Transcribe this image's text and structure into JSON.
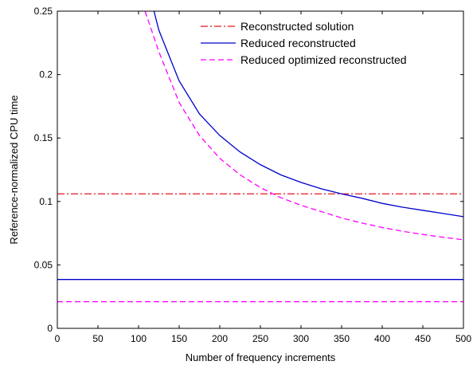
{
  "chart_data": {
    "type": "line",
    "title": "",
    "xlabel": "Number of frequency increments",
    "ylabel": "Reference-normalized CPU time",
    "xlim": [
      0,
      500
    ],
    "ylim": [
      0,
      0.25
    ],
    "xticks": [
      0,
      50,
      100,
      150,
      200,
      250,
      300,
      350,
      400,
      450,
      500
    ],
    "xtick_labels": [
      "0",
      "50",
      "100",
      "150",
      "200",
      "250",
      "300",
      "350",
      "400",
      "450",
      "500"
    ],
    "yticks": [
      0,
      0.05,
      0.1,
      0.15,
      0.2,
      0.25
    ],
    "ytick_labels": [
      "0",
      "0.05",
      "0.1",
      "0.15",
      "0.2",
      "0.25"
    ],
    "grid": false,
    "legend_position": "top-right",
    "series": [
      {
        "name": "Reconstructed solution",
        "color": "#e8141e",
        "line_style": "dash-dot",
        "x": [
          0,
          500
        ],
        "y": [
          0.106,
          0.106
        ]
      },
      {
        "name": "Reduced reconstructed",
        "color": "#0000cc",
        "line_style": "solid",
        "x": [
          0,
          500
        ],
        "y": [
          0.0385,
          0.0385
        ]
      },
      {
        "name": "Reduced reconstructed",
        "show_in_legend": false,
        "color": "#0000cc",
        "line_style": "solid",
        "x": [
          119,
          125,
          150,
          175,
          200,
          225,
          250,
          275,
          300,
          325,
          350,
          375,
          400,
          425,
          450,
          475,
          500
        ],
        "y": [
          0.25,
          0.235,
          0.195,
          0.169,
          0.152,
          0.139,
          0.129,
          0.121,
          0.115,
          0.11,
          0.106,
          0.1025,
          0.0985,
          0.0955,
          0.093,
          0.0905,
          0.088
        ]
      },
      {
        "name": "Reduced optimized reconstructed",
        "color": "#ff00ff",
        "line_style": "dashed",
        "x": [
          0,
          500
        ],
        "y": [
          0.021,
          0.021
        ]
      },
      {
        "name": "Reduced optimized reconstructed",
        "show_in_legend": false,
        "color": "#ff00ff",
        "line_style": "dashed",
        "x": [
          108,
          125,
          150,
          175,
          200,
          225,
          250,
          275,
          300,
          325,
          350,
          375,
          400,
          425,
          450,
          475,
          500
        ],
        "y": [
          0.25,
          0.218,
          0.178,
          0.152,
          0.134,
          0.121,
          0.111,
          0.103,
          0.097,
          0.092,
          0.087,
          0.083,
          0.0795,
          0.0765,
          0.074,
          0.0718,
          0.0698
        ]
      }
    ]
  }
}
